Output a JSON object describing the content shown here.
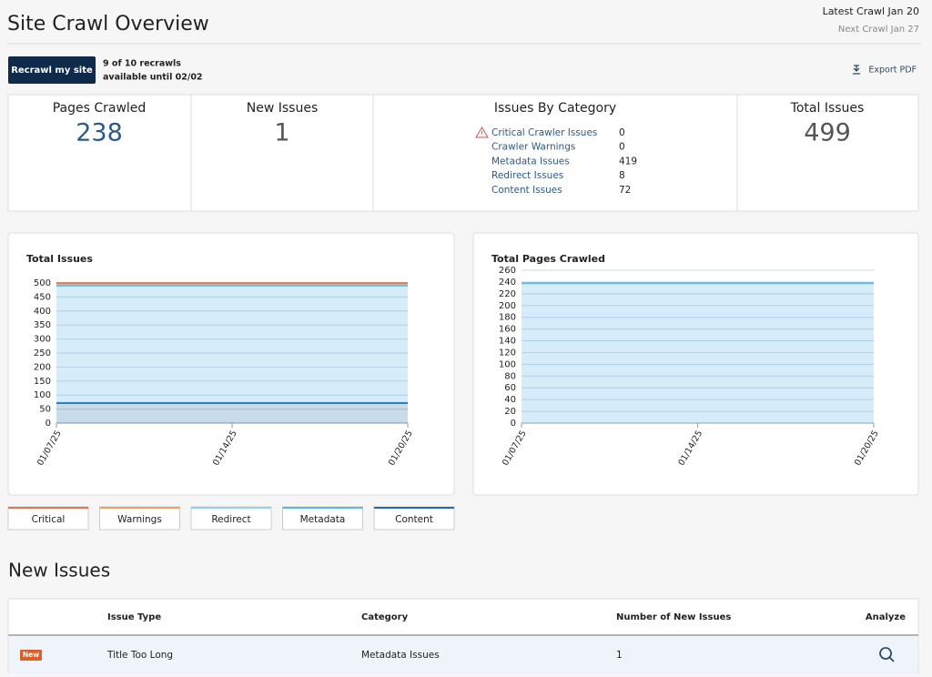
{
  "header": {
    "title": "Site Crawl Overview",
    "latest_crawl": "Latest Crawl Jan 20",
    "next_crawl": "Next Crawl Jan 27"
  },
  "actions": {
    "recrawl_button": "Recrawl my site",
    "recrawl_info": [
      "9 of 10 recrawls",
      "available until 02/02"
    ],
    "export": "Export PDF"
  },
  "stats": {
    "pages_crawled": {
      "label": "Pages Crawled",
      "value": 238
    },
    "new_issues": {
      "label": "New Issues",
      "value": 1
    },
    "issues_by_category": {
      "label": "Issues By Category",
      "items": [
        {
          "name": "Critical Crawler Issues",
          "count": 0
        },
        {
          "name": "Crawler Warnings",
          "count": 0
        },
        {
          "name": "Metadata Issues",
          "count": 419
        },
        {
          "name": "Redirect Issues",
          "count": 8
        },
        {
          "name": "Content Issues",
          "count": 72
        }
      ]
    },
    "total_issues": {
      "label": "Total Issues",
      "value": 499
    }
  },
  "chart_data": [
    {
      "type": "area",
      "stacked": true,
      "title": "Total Issues",
      "categories": [
        "01/07/25",
        "01/14/25",
        "01/20/25"
      ],
      "series": [
        {
          "name": "Critical",
          "color": "#e8734f",
          "values": [
            0,
            0,
            0
          ]
        },
        {
          "name": "Warnings",
          "color": "#f0a060",
          "values": [
            0,
            0,
            0
          ]
        },
        {
          "name": "Redirect",
          "color": "#8fd3f0",
          "values": [
            8,
            8,
            8
          ]
        },
        {
          "name": "Metadata",
          "color": "#5bb8e8",
          "values": [
            419,
            419,
            419
          ]
        },
        {
          "name": "Content",
          "color": "#1f6fb0",
          "values": [
            72,
            72,
            72
          ]
        }
      ],
      "ylim": [
        0,
        500
      ],
      "yticks": [
        0,
        50,
        100,
        150,
        200,
        250,
        300,
        350,
        400,
        450,
        500
      ],
      "grid": true
    },
    {
      "type": "area",
      "title": "Total Pages Crawled",
      "categories": [
        "01/07/25",
        "01/14/25",
        "01/20/25"
      ],
      "values": [
        238,
        238,
        238
      ],
      "color": "#5bb8e8",
      "ylim": [
        0,
        260
      ],
      "yticks": [
        0,
        20,
        40,
        60,
        80,
        100,
        120,
        140,
        160,
        180,
        200,
        220,
        240,
        260
      ],
      "grid": true
    }
  ],
  "new_issues": {
    "title": "New Issues",
    "columns": [
      "Issue Type",
      "Category",
      "Number of New Issues",
      "Analyze"
    ],
    "rows": [
      {
        "badge": "New",
        "issue_type": "Title Too Long",
        "category": "Metadata Issues",
        "count": 1
      }
    ]
  }
}
